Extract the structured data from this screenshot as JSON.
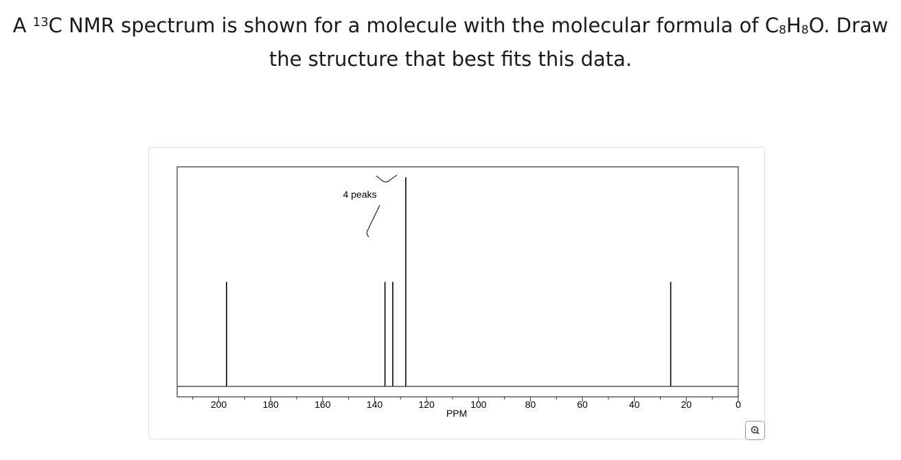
{
  "question": {
    "parts": [
      "A ",
      "13",
      "C NMR spectrum is shown for a molecule with the molecular formula of C",
      "8",
      "H",
      "8",
      "O. Draw the structure that best fits this data."
    ]
  },
  "chart_data": {
    "type": "stick",
    "x_label": "PPM",
    "annotation": "4 peaks",
    "x": [
      197,
      136,
      133,
      128,
      26
    ],
    "values": [
      0.5,
      0.5,
      0.5,
      1,
      0.5
    ],
    "color": "#000000",
    "xlim": [
      216,
      0
    ],
    "ylim": [
      -0.05,
      1.05
    ],
    "xticks": [
      200,
      180,
      160,
      140,
      120,
      100,
      80,
      60,
      40,
      20,
      0
    ],
    "minor_xticks": [
      210,
      190,
      170,
      150,
      130,
      110,
      90,
      70,
      50,
      30,
      10
    ]
  }
}
